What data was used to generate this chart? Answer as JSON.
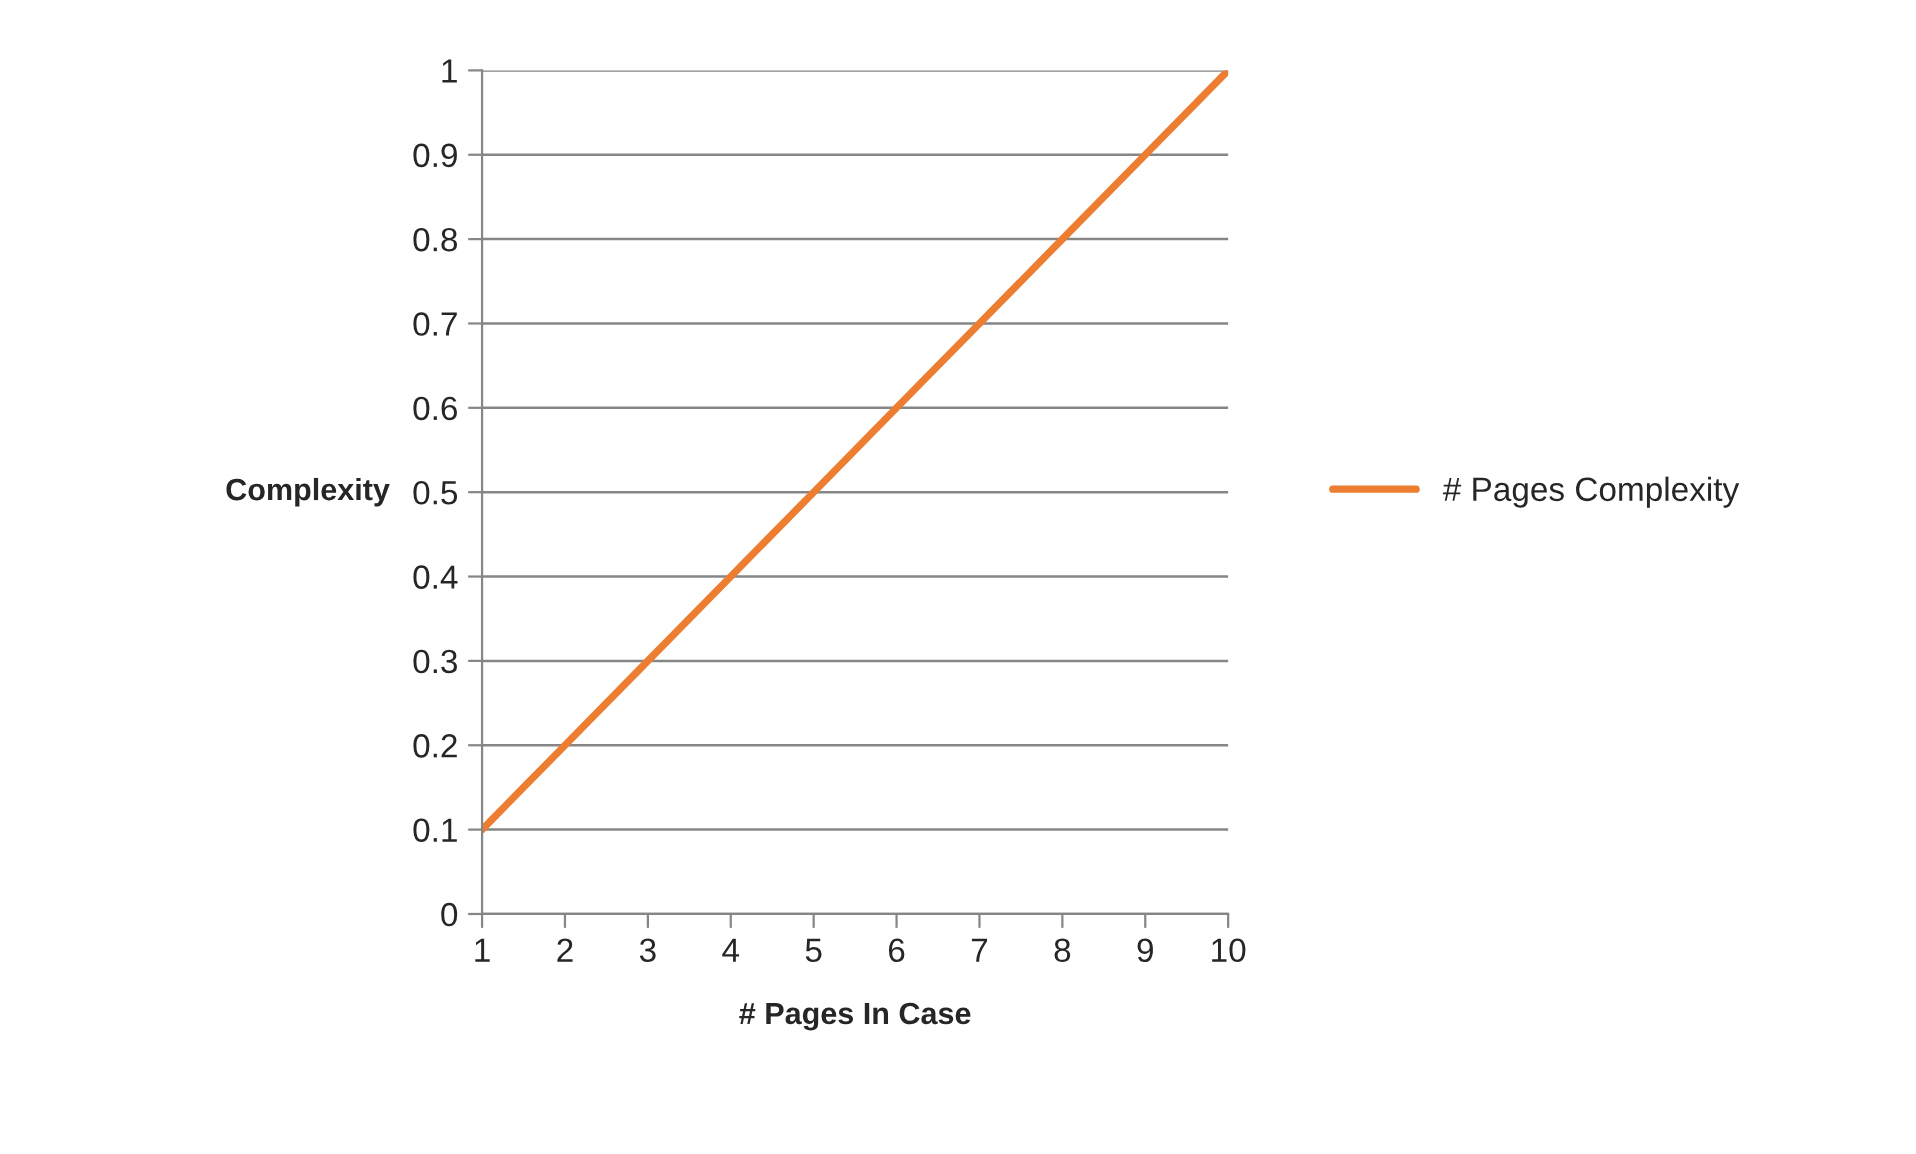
{
  "chart_data": {
    "type": "line",
    "xlabel": "# Pages In Case",
    "ylabel": "Complexity",
    "categories": [
      "1",
      "2",
      "3",
      "4",
      "5",
      "6",
      "7",
      "8",
      "9",
      "10"
    ],
    "series": [
      {
        "name": "# Pages Complexity",
        "color": "#ed7d31",
        "values": [
          0.1,
          0.2,
          0.3,
          0.4,
          0.5,
          0.6,
          0.7,
          0.8,
          0.9,
          1
        ]
      }
    ],
    "ylim": [
      0,
      1
    ],
    "yticks": [
      0,
      0.1,
      0.2,
      0.3,
      0.4,
      0.5,
      0.6,
      0.7,
      0.8,
      0.9,
      1
    ],
    "grid": "y",
    "legend": "right",
    "marker": "none",
    "line_style": "solid"
  }
}
